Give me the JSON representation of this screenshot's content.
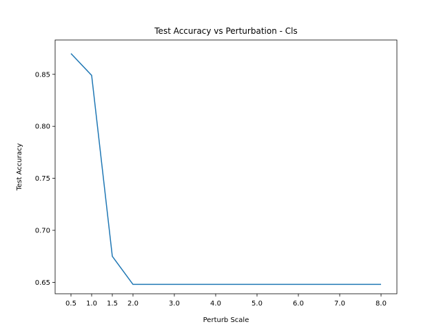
{
  "chart_data": {
    "type": "line",
    "title": "Test Accuracy vs Perturbation - Cls",
    "xlabel": "Perturb Scale",
    "ylabel": "Test Accuracy",
    "x": [
      0.5,
      1.0,
      1.5,
      2.0,
      3.0,
      4.0,
      5.0,
      6.0,
      7.0,
      8.0
    ],
    "x_tick_labels": [
      "0.5",
      "1.0",
      "1.5",
      "2.0",
      "3.0",
      "4.0",
      "5.0",
      "6.0",
      "7.0",
      "8.0"
    ],
    "y_ticks": [
      0.65,
      0.7,
      0.75,
      0.8,
      0.85
    ],
    "y_tick_labels": [
      "0.65",
      "0.70",
      "0.75",
      "0.80",
      "0.85"
    ],
    "ylim": [
      0.639,
      0.883
    ],
    "series": [
      {
        "values": [
          0.87,
          0.849,
          0.675,
          0.648,
          0.648,
          0.648,
          0.648,
          0.648,
          0.648,
          0.648
        ]
      }
    ],
    "colors": {
      "line": "#1f77b4",
      "axes": "#000000"
    },
    "grid": false,
    "legend": "none"
  }
}
